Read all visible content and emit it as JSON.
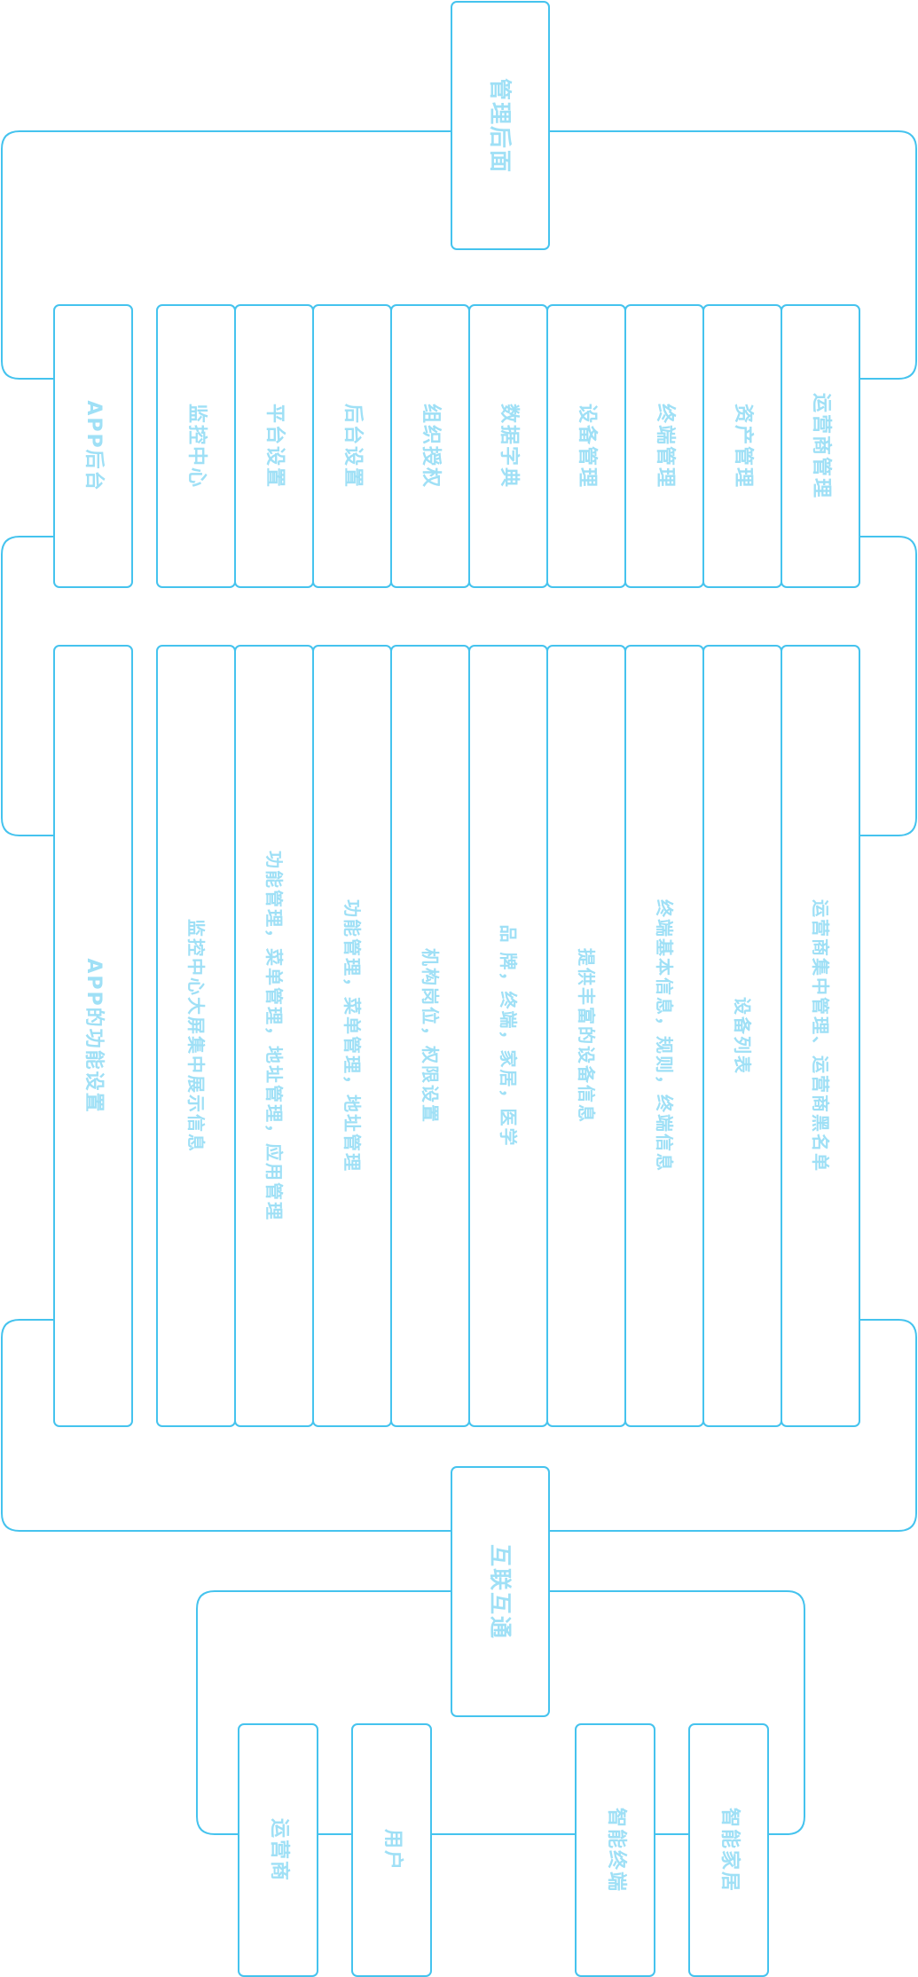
{
  "colors": {
    "line": "#45c3ee",
    "text": "#9fe0f6",
    "background": "#ffffff"
  },
  "top": {
    "title": "管理后面"
  },
  "row1": {
    "app": "APP后台",
    "items": [
      "监控中心",
      "平台设置",
      "后台设置",
      "组织授权",
      "数据字典",
      "设备管理",
      "终端管理",
      "资产管理",
      "运营商管理"
    ]
  },
  "row2": {
    "app": "APP的功能设置",
    "items": [
      "监控中心大屏集中展示信息",
      "功能管理，菜单管理，地址管理，应用管理",
      "功能管理，菜单管理，地址管理",
      "机构岗位，权限设置",
      "品 牌，终端，家居，医学",
      "提供丰富的设备信息",
      "终端基本信息，规则，终端信息",
      "设备列表",
      "运营商集中管理、运营商黑名单"
    ]
  },
  "middle": {
    "title": "互联互通"
  },
  "bottom": {
    "items": [
      "运营商",
      "用户",
      "智能终端",
      "智能家居"
    ]
  }
}
